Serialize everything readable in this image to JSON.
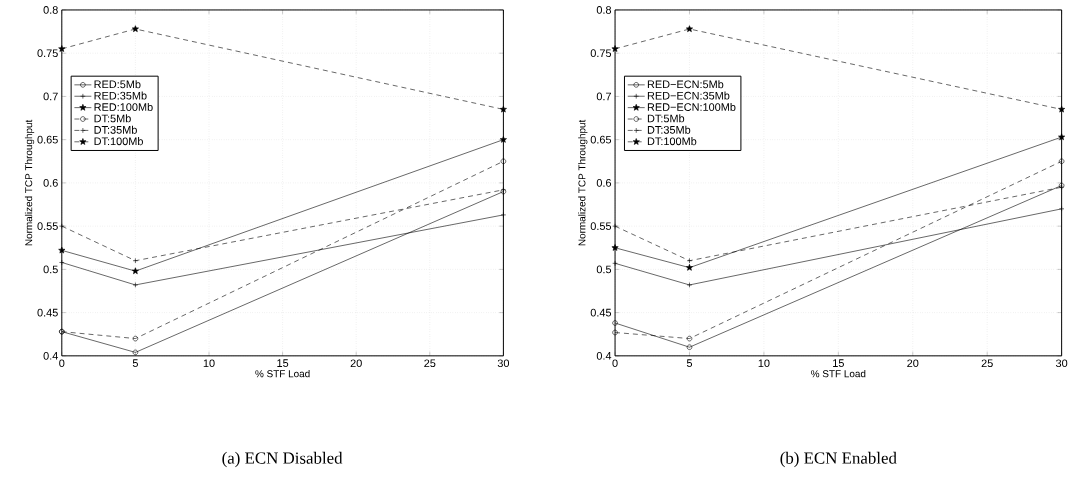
{
  "chart_data": [
    {
      "type": "line",
      "title": "(a) ECN Disabled",
      "xlabel": "% STF Load",
      "ylabel": "Normalized TCP Throughput",
      "x": [
        0,
        5,
        30
      ],
      "xlim": [
        0,
        30
      ],
      "xticks": [
        0,
        5,
        10,
        15,
        20,
        25,
        30
      ],
      "ylim": [
        0.4,
        0.8
      ],
      "yticks": [
        0.4,
        0.45,
        0.5,
        0.55,
        0.6,
        0.65,
        0.7,
        0.75,
        0.8
      ],
      "grid": true,
      "legend": "top left",
      "series": [
        {
          "name": "RED:5Mb",
          "color": "#000000",
          "marker": "circle",
          "line_style": "solid",
          "values": [
            0.428,
            0.404,
            0.59
          ]
        },
        {
          "name": "RED:35Mb",
          "color": "#000000",
          "marker": "cross",
          "line_style": "solid",
          "values": [
            0.508,
            0.482,
            0.563
          ]
        },
        {
          "name": "RED:100Mb",
          "color": "#000000",
          "marker": "star",
          "line_style": "solid",
          "values": [
            0.522,
            0.498,
            0.65
          ]
        },
        {
          "name": "DT:5Mb",
          "color": "#000000",
          "marker": "circle",
          "line_style": "dashed",
          "values": [
            0.428,
            0.42,
            0.625
          ]
        },
        {
          "name": "DT:35Mb",
          "color": "#000000",
          "marker": "cross",
          "line_style": "dashed",
          "values": [
            0.55,
            0.51,
            0.592
          ]
        },
        {
          "name": "DT:100Mb",
          "color": "#000000",
          "marker": "star",
          "line_style": "dashed",
          "values": [
            0.755,
            0.778,
            0.685
          ]
        }
      ]
    },
    {
      "type": "line",
      "title": "(b) ECN Enabled",
      "xlabel": "% STF Load",
      "ylabel": "Normalized TCP Throughput",
      "x": [
        0,
        5,
        30
      ],
      "xlim": [
        0,
        30
      ],
      "xticks": [
        0,
        5,
        10,
        15,
        20,
        25,
        30
      ],
      "ylim": [
        0.4,
        0.8
      ],
      "yticks": [
        0.4,
        0.45,
        0.5,
        0.55,
        0.6,
        0.65,
        0.7,
        0.75,
        0.8
      ],
      "grid": true,
      "legend": "top left",
      "series": [
        {
          "name": "RED−ECN:5Mb",
          "color": "#000000",
          "marker": "circle",
          "line_style": "solid",
          "values": [
            0.438,
            0.41,
            0.597
          ]
        },
        {
          "name": "RED−ECN:35Mb",
          "color": "#000000",
          "marker": "cross",
          "line_style": "solid",
          "values": [
            0.507,
            0.482,
            0.57
          ]
        },
        {
          "name": "RED−ECN:100Mb",
          "color": "#000000",
          "marker": "star",
          "line_style": "solid",
          "values": [
            0.525,
            0.502,
            0.653
          ]
        },
        {
          "name": "DT:5Mb",
          "color": "#000000",
          "marker": "circle",
          "line_style": "dashed",
          "values": [
            0.427,
            0.42,
            0.625
          ]
        },
        {
          "name": "DT:35Mb",
          "color": "#000000",
          "marker": "cross",
          "line_style": "dashed",
          "values": [
            0.55,
            0.51,
            0.595
          ]
        },
        {
          "name": "DT:100Mb",
          "color": "#000000",
          "marker": "star",
          "line_style": "dashed",
          "values": [
            0.755,
            0.778,
            0.685
          ]
        }
      ]
    }
  ]
}
